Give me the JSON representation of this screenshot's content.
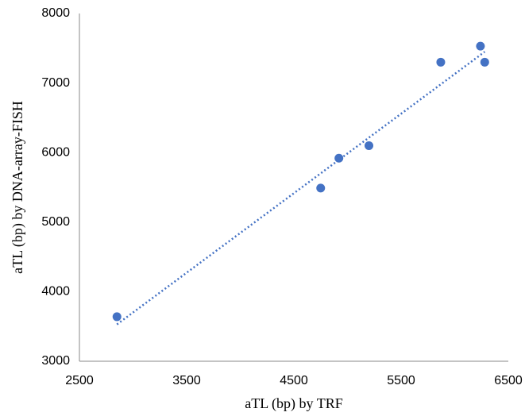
{
  "chart_data": {
    "type": "scatter",
    "x_label": "aTL (bp) by TRF",
    "y_label": "aTL (bp) by DNA-array-FISH",
    "series": [
      {
        "color": "#4472c4",
        "x": [
          2850,
          4750,
          4920,
          5200,
          5870,
          6240,
          6280
        ],
        "values": [
          3640,
          5490,
          5920,
          6100,
          7300,
          7530,
          7300
        ]
      }
    ],
    "trendline": {
      "color": "#4472c4",
      "x": [
        2850,
        6280
      ],
      "values": [
        3530,
        7450
      ]
    },
    "xlim": [
      2500,
      6500
    ],
    "xticks": [
      2500,
      3500,
      4500,
      5500,
      6500
    ],
    "ylim": [
      3000,
      8000
    ],
    "yticks": [
      3000,
      4000,
      5000,
      6000,
      7000,
      8000
    ],
    "grid": false
  }
}
